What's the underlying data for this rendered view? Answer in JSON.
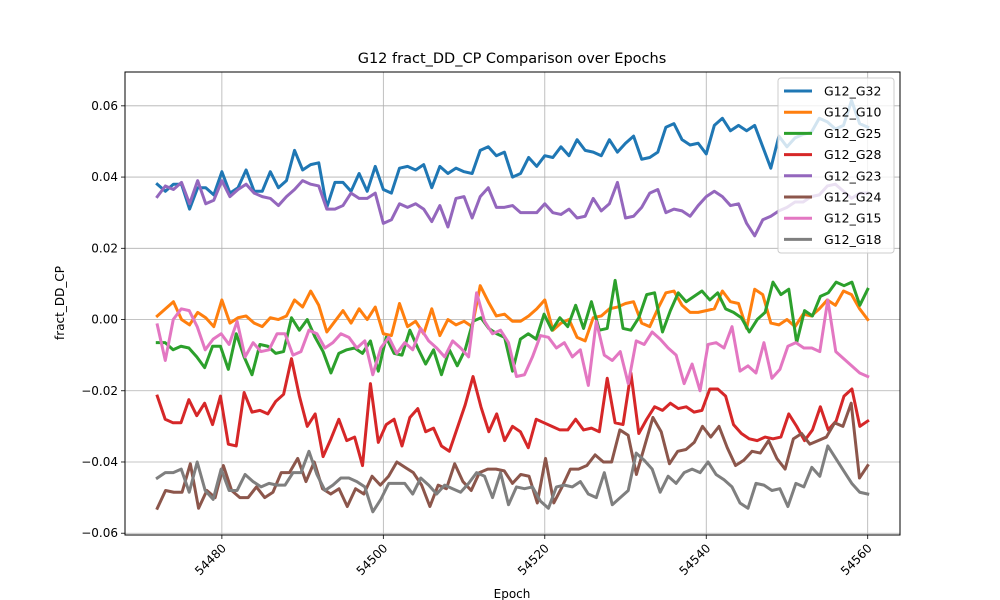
{
  "chart_data": {
    "type": "line",
    "title": "G12 fract_DD_CP Comparison over Epochs",
    "xlabel": "Epoch",
    "ylabel": "fract_DD_CP",
    "xlim": [
      54468,
      54564
    ],
    "ylim": [
      -0.0605,
      0.0695
    ],
    "x_start": 54472,
    "x_end": 54560,
    "x_ticks": [
      54480,
      54500,
      54520,
      54540,
      54560
    ],
    "x_tick_labels": [
      "54480",
      "54500",
      "54520",
      "54540",
      "54560"
    ],
    "y_ticks": [
      -0.06,
      -0.04,
      -0.02,
      0.0,
      0.02,
      0.04,
      0.06
    ],
    "y_tick_labels": [
      "−0.06",
      "−0.04",
      "−0.02",
      "0.00",
      "0.02",
      "0.04",
      "0.06"
    ],
    "grid": true,
    "legend_position": "top-right",
    "series": [
      {
        "name": "G12_G32",
        "color": "#1f77b4",
        "values": [
          0.038,
          0.036,
          0.038,
          0.038,
          0.031,
          0.037,
          0.037,
          0.035,
          0.0415,
          0.0355,
          0.037,
          0.042,
          0.036,
          0.036,
          0.0415,
          0.037,
          0.039,
          0.0475,
          0.042,
          0.0435,
          0.044,
          0.0315,
          0.0385,
          0.0385,
          0.036,
          0.041,
          0.036,
          0.043,
          0.0365,
          0.0355,
          0.0425,
          0.043,
          0.042,
          0.0435,
          0.037,
          0.043,
          0.041,
          0.0425,
          0.0415,
          0.041,
          0.0475,
          0.0485,
          0.046,
          0.047,
          0.04,
          0.041,
          0.0455,
          0.043,
          0.046,
          0.0455,
          0.0485,
          0.046,
          0.0505,
          0.0475,
          0.047,
          0.046,
          0.0505,
          0.047,
          0.0495,
          0.0515,
          0.045,
          0.0455,
          0.047,
          0.054,
          0.055,
          0.0505,
          0.049,
          0.0495,
          0.0465,
          0.0545,
          0.0565,
          0.053,
          0.0545,
          0.053,
          0.0545,
          0.0485,
          0.0425,
          0.0515,
          0.0485,
          0.051,
          0.052,
          0.0525,
          0.0565,
          0.0555,
          0.0535,
          0.0545,
          0.0615,
          0.055,
          0.054
        ]
      },
      {
        "name": "G12_G10",
        "color": "#ff7f0e",
        "values": [
          0.001,
          0.003,
          0.005,
          0.0,
          -0.0015,
          0.002,
          0.0005,
          -0.002,
          0.0055,
          -0.001,
          0.0005,
          0.001,
          -0.001,
          -0.002,
          0.0005,
          0.0,
          0.001,
          0.0055,
          0.0035,
          0.008,
          0.004,
          -0.0035,
          -0.0005,
          0.0025,
          -0.001,
          0.003,
          0.0,
          0.0035,
          -0.004,
          -0.0045,
          0.0045,
          -0.002,
          -0.0005,
          -0.004,
          0.003,
          -0.0045,
          0.0,
          -0.0015,
          -0.0005,
          -0.002,
          0.0095,
          0.005,
          0.001,
          0.0015,
          -0.0005,
          -0.0005,
          0.001,
          0.003,
          0.0055,
          -0.003,
          -0.001,
          0.0,
          -0.005,
          -0.006,
          0.0005,
          0.001,
          0.003,
          0.0035,
          0.0045,
          0.005,
          -0.001,
          -0.002,
          0.003,
          0.0075,
          0.008,
          0.004,
          0.002,
          0.002,
          0.0025,
          0.003,
          0.008,
          0.005,
          0.0045,
          -0.0025,
          0.0085,
          0.007,
          -0.001,
          -0.0015,
          0.0,
          -0.002,
          0.0015,
          0.001,
          0.003,
          0.0055,
          0.004,
          0.008,
          0.007,
          0.003,
          0.0
        ]
      },
      {
        "name": "G12_G25",
        "color": "#2ca02c",
        "values": [
          -0.0065,
          -0.0065,
          -0.0085,
          -0.0075,
          -0.008,
          -0.0105,
          -0.0135,
          -0.0075,
          -0.0075,
          -0.014,
          -0.004,
          -0.0105,
          -0.0155,
          -0.007,
          -0.0075,
          -0.0095,
          -0.009,
          0.0005,
          -0.003,
          0.0,
          -0.005,
          -0.009,
          -0.015,
          -0.0095,
          -0.0085,
          -0.008,
          -0.0095,
          -0.006,
          -0.0145,
          -0.005,
          -0.0095,
          -0.01,
          -0.003,
          -0.008,
          -0.0125,
          -0.0085,
          -0.0155,
          -0.0085,
          -0.013,
          -0.0085,
          -0.0005,
          0.0005,
          -0.0025,
          -0.004,
          -0.005,
          -0.0145,
          -0.0055,
          -0.004,
          -0.0055,
          0.0015,
          -0.003,
          0.0005,
          -0.002,
          0.004,
          -0.0025,
          0.005,
          -0.003,
          -0.0025,
          0.011,
          -0.0025,
          -0.003,
          0.0005,
          0.007,
          0.0075,
          -0.0035,
          0.0025,
          0.0075,
          0.005,
          0.0065,
          0.008,
          0.0055,
          0.0075,
          0.003,
          0.002,
          0.0005,
          -0.0035,
          0.0,
          0.002,
          0.0105,
          0.007,
          0.0085,
          -0.0065,
          0.0025,
          0.001,
          0.0065,
          0.0075,
          0.0105,
          0.0095,
          0.0105,
          0.004,
          0.0085
        ]
      },
      {
        "name": "G12_G28",
        "color": "#d62728",
        "values": [
          -0.0215,
          -0.028,
          -0.029,
          -0.029,
          -0.0225,
          -0.027,
          -0.0235,
          -0.0295,
          -0.0215,
          -0.035,
          -0.0355,
          -0.0205,
          -0.026,
          -0.0255,
          -0.0265,
          -0.023,
          -0.021,
          -0.011,
          -0.0215,
          -0.03,
          -0.0265,
          -0.0385,
          -0.0335,
          -0.028,
          -0.034,
          -0.033,
          -0.041,
          -0.018,
          -0.0345,
          -0.0295,
          -0.028,
          -0.0355,
          -0.0275,
          -0.025,
          -0.0315,
          -0.0305,
          -0.0355,
          -0.037,
          -0.0305,
          -0.024,
          -0.016,
          -0.0245,
          -0.0315,
          -0.0265,
          -0.034,
          -0.03,
          -0.0315,
          -0.036,
          -0.028,
          -0.029,
          -0.03,
          -0.031,
          -0.031,
          -0.028,
          -0.031,
          -0.0305,
          -0.0315,
          -0.0165,
          -0.029,
          -0.0295,
          -0.015,
          -0.032,
          -0.028,
          -0.0245,
          -0.0255,
          -0.0235,
          -0.025,
          -0.0245,
          -0.026,
          -0.0255,
          -0.0195,
          -0.0195,
          -0.0215,
          -0.0295,
          -0.032,
          -0.0335,
          -0.034,
          -0.033,
          -0.0335,
          -0.033,
          -0.0265,
          -0.03,
          -0.034,
          -0.031,
          -0.0245,
          -0.031,
          -0.0285,
          -0.0215,
          -0.0195,
          -0.03,
          -0.0285
        ]
      },
      {
        "name": "G12_G23",
        "color": "#9467bd",
        "values": [
          0.0345,
          0.0375,
          0.0365,
          0.0385,
          0.0325,
          0.039,
          0.0325,
          0.0335,
          0.039,
          0.0345,
          0.0365,
          0.038,
          0.0355,
          0.0345,
          0.034,
          0.032,
          0.0345,
          0.0365,
          0.039,
          0.038,
          0.0375,
          0.031,
          0.031,
          0.032,
          0.0355,
          0.034,
          0.034,
          0.0355,
          0.027,
          0.028,
          0.0325,
          0.0315,
          0.0325,
          0.031,
          0.0275,
          0.032,
          0.026,
          0.034,
          0.0345,
          0.0285,
          0.0345,
          0.037,
          0.0315,
          0.0315,
          0.032,
          0.03,
          0.03,
          0.03,
          0.0325,
          0.03,
          0.0295,
          0.031,
          0.0285,
          0.029,
          0.034,
          0.0305,
          0.0325,
          0.0385,
          0.0285,
          0.029,
          0.0315,
          0.0355,
          0.0365,
          0.03,
          0.031,
          0.0305,
          0.029,
          0.032,
          0.0345,
          0.036,
          0.0345,
          0.032,
          0.0325,
          0.027,
          0.0235,
          0.028,
          0.029,
          0.0305,
          0.0315,
          0.033,
          0.033,
          0.0345,
          0.035,
          0.0375,
          0.038,
          0.036,
          0.034,
          0.0355,
          0.0355
        ]
      },
      {
        "name": "G12_G24",
        "color": "#8c564b",
        "values": [
          -0.053,
          -0.048,
          -0.0485,
          -0.0485,
          -0.0405,
          -0.053,
          -0.048,
          -0.05,
          -0.041,
          -0.048,
          -0.05,
          -0.05,
          -0.047,
          -0.05,
          -0.0485,
          -0.043,
          -0.043,
          -0.039,
          -0.0455,
          -0.04,
          -0.0475,
          -0.049,
          -0.0475,
          -0.0525,
          -0.0475,
          -0.049,
          -0.044,
          -0.0465,
          -0.044,
          -0.04,
          -0.0415,
          -0.043,
          -0.0465,
          -0.0525,
          -0.0465,
          -0.0475,
          -0.0405,
          -0.0455,
          -0.048,
          -0.043,
          -0.042,
          -0.042,
          -0.0425,
          -0.046,
          -0.0435,
          -0.044,
          -0.0515,
          -0.039,
          -0.0515,
          -0.047,
          -0.042,
          -0.042,
          -0.041,
          -0.038,
          -0.04,
          -0.04,
          -0.031,
          -0.0325,
          -0.0435,
          -0.0355,
          -0.0275,
          -0.0315,
          -0.0405,
          -0.037,
          -0.0365,
          -0.0345,
          -0.03,
          -0.033,
          -0.03,
          -0.036,
          -0.041,
          -0.0395,
          -0.037,
          -0.0375,
          -0.034,
          -0.039,
          -0.042,
          -0.0335,
          -0.032,
          -0.035,
          -0.034,
          -0.033,
          -0.029,
          -0.03,
          -0.0235,
          -0.0445,
          -0.041
        ]
      },
      {
        "name": "G12_G15",
        "color": "#e377c2",
        "values": [
          -0.0015,
          -0.0115,
          0.0,
          0.003,
          0.0025,
          -0.002,
          -0.0085,
          -0.0055,
          -0.004,
          -0.007,
          -0.0005,
          -0.0105,
          -0.0065,
          -0.009,
          -0.0085,
          -0.004,
          -0.004,
          -0.01,
          -0.009,
          -0.003,
          -0.004,
          -0.008,
          -0.0065,
          -0.004,
          -0.005,
          -0.008,
          -0.006,
          -0.0155,
          -0.008,
          -0.005,
          -0.0095,
          -0.0065,
          -0.0085,
          -0.0025,
          -0.006,
          -0.008,
          -0.0105,
          -0.006,
          -0.008,
          -0.0105,
          0.0075,
          -0.0005,
          -0.004,
          -0.003,
          -0.0065,
          -0.016,
          -0.0155,
          -0.0105,
          -0.0045,
          -0.005,
          -0.008,
          -0.0065,
          -0.0105,
          -0.0085,
          -0.0185,
          -0.0005,
          -0.01,
          -0.0115,
          -0.009,
          -0.018,
          -0.006,
          -0.007,
          -0.0035,
          -0.0055,
          -0.008,
          -0.01,
          -0.018,
          -0.0125,
          -0.02,
          -0.007,
          -0.0065,
          -0.008,
          -0.002,
          -0.0145,
          -0.013,
          -0.015,
          -0.0065,
          -0.0165,
          -0.014,
          -0.0075,
          -0.0065,
          -0.008,
          -0.008,
          -0.009,
          0.0055,
          -0.009,
          -0.011,
          -0.013,
          -0.015,
          -0.016
        ]
      },
      {
        "name": "G12_G18",
        "color": "#7f7f7f",
        "values": [
          -0.0445,
          -0.043,
          -0.043,
          -0.042,
          -0.0485,
          -0.04,
          -0.048,
          -0.0505,
          -0.042,
          -0.048,
          -0.048,
          -0.0435,
          -0.0455,
          -0.047,
          -0.046,
          -0.0465,
          -0.0465,
          -0.043,
          -0.043,
          -0.037,
          -0.0435,
          -0.048,
          -0.0465,
          -0.0445,
          -0.0445,
          -0.0455,
          -0.047,
          -0.054,
          -0.0505,
          -0.046,
          -0.046,
          -0.046,
          -0.049,
          -0.0445,
          -0.0465,
          -0.049,
          -0.0465,
          -0.0475,
          -0.0485,
          -0.046,
          -0.043,
          -0.044,
          -0.05,
          -0.043,
          -0.052,
          -0.047,
          -0.0475,
          -0.047,
          -0.051,
          -0.053,
          -0.047,
          -0.0465,
          -0.047,
          -0.0455,
          -0.049,
          -0.05,
          -0.043,
          -0.052,
          -0.05,
          -0.048,
          -0.0375,
          -0.0395,
          -0.042,
          -0.0485,
          -0.044,
          -0.046,
          -0.043,
          -0.042,
          -0.043,
          -0.04,
          -0.0435,
          -0.045,
          -0.047,
          -0.0515,
          -0.053,
          -0.046,
          -0.0465,
          -0.048,
          -0.0475,
          -0.0525,
          -0.046,
          -0.047,
          -0.0415,
          -0.044,
          -0.0355,
          -0.039,
          -0.0425,
          -0.046,
          -0.0485,
          -0.049
        ]
      }
    ]
  }
}
